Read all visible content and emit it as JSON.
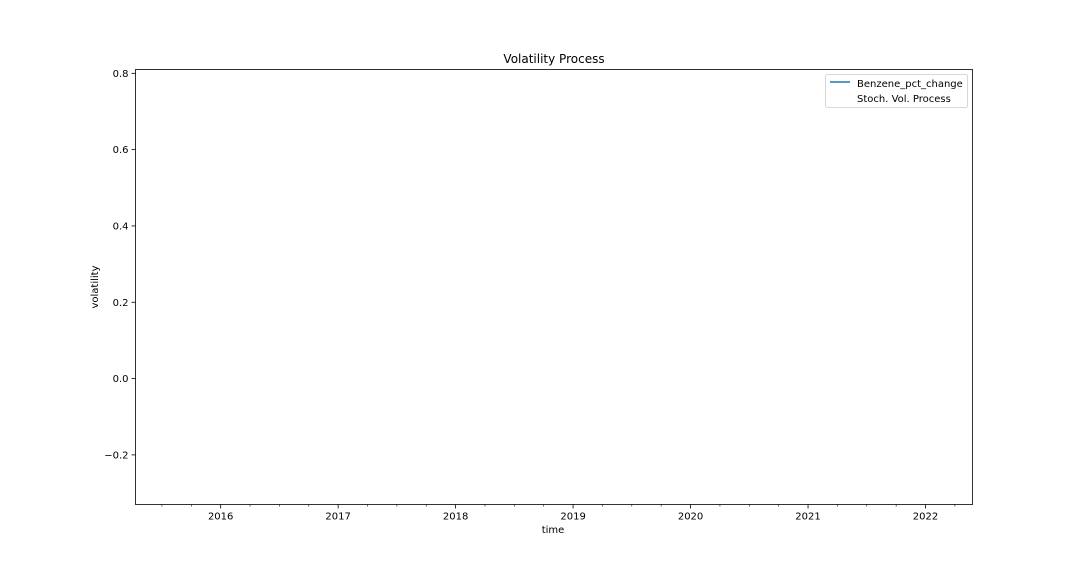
{
  "chart_data": {
    "type": "line",
    "title": "Volatility Process",
    "xlabel": "time",
    "ylabel": "volatility",
    "xlim": [
      2015.275,
      2022.4
    ],
    "ylim": [
      -0.33,
      0.81
    ],
    "x_ticks": [
      {
        "value": 2016,
        "label": "2016"
      },
      {
        "value": 2017,
        "label": "2017"
      },
      {
        "value": 2018,
        "label": "2018"
      },
      {
        "value": 2019,
        "label": "2019"
      },
      {
        "value": 2020,
        "label": "2020"
      },
      {
        "value": 2021,
        "label": "2021"
      },
      {
        "value": 2022,
        "label": "2022"
      }
    ],
    "y_ticks": [
      {
        "value": -0.2,
        "label": "−0.2"
      },
      {
        "value": 0.0,
        "label": "0.0"
      },
      {
        "value": 0.2,
        "label": "0.2"
      },
      {
        "value": 0.4,
        "label": "0.4"
      },
      {
        "value": 0.6,
        "label": "0.6"
      },
      {
        "value": 0.8,
        "label": "0.8"
      }
    ],
    "grid": false,
    "legend_position": "top-right",
    "series": [
      {
        "name": "Benzene_pct_change",
        "color": "#1f77b4",
        "marker": "line",
        "x": [],
        "y": []
      },
      {
        "name": "Stoch. Vol. Process",
        "color": "#ffffff",
        "marker": "none",
        "x": [],
        "y": []
      }
    ]
  }
}
